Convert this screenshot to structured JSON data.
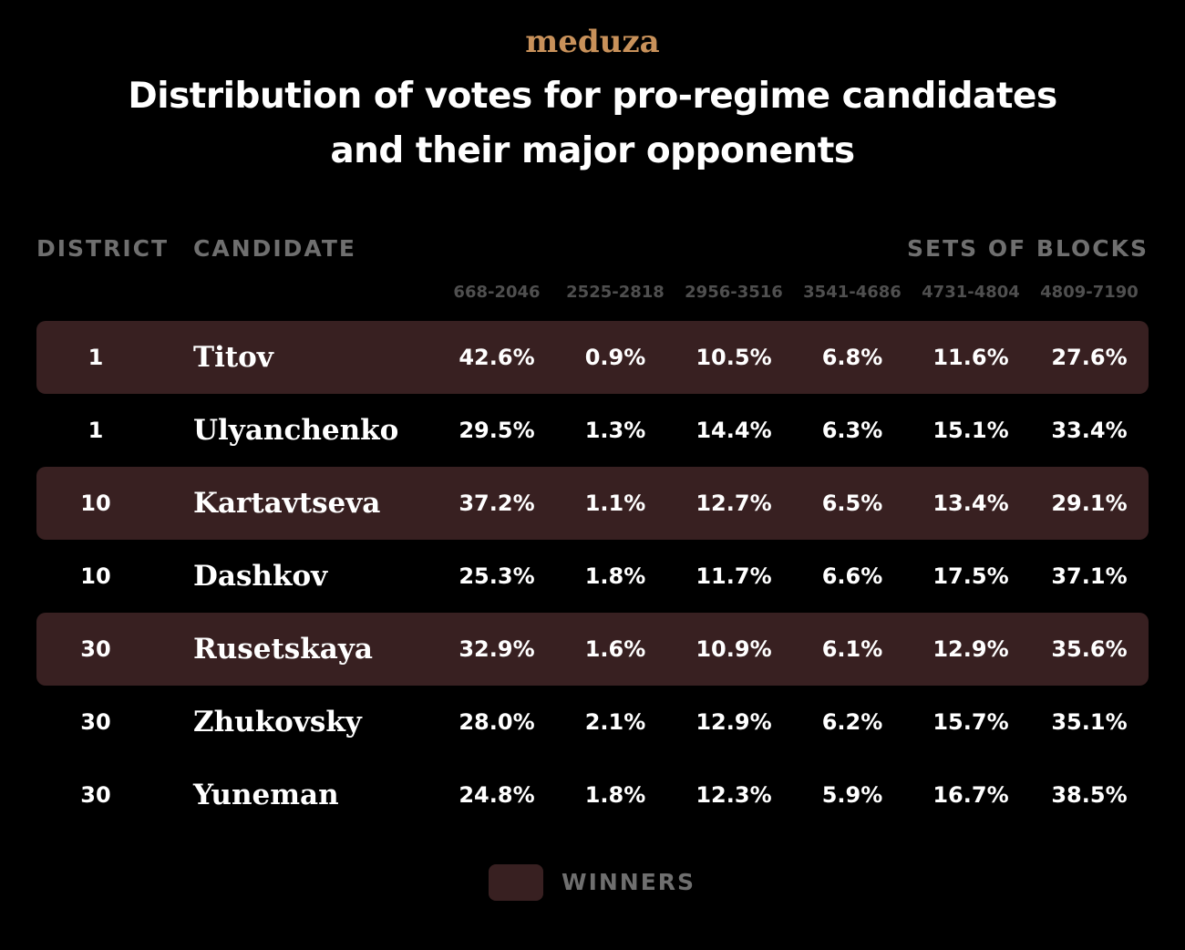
{
  "brand": {
    "logo_text": "meduza"
  },
  "chart_data": {
    "type": "table",
    "title_lines": [
      "Distribution of votes for pro-regime candidates",
      "and their major opponents"
    ],
    "headers": {
      "district": "DISTRICT",
      "candidate": "CANDIDATE",
      "group": "SETS OF BLOCKS"
    },
    "block_sets": [
      "668-2046",
      "2525-2818",
      "2956-3516",
      "3541-4686",
      "4731-4804",
      "4809-7190"
    ],
    "rows": [
      {
        "district": "1",
        "candidate": "Titov",
        "winner": true,
        "values": [
          "42.6%",
          "0.9%",
          "10.5%",
          "6.8%",
          "11.6%",
          "27.6%"
        ]
      },
      {
        "district": "1",
        "candidate": "Ulyanchenko",
        "winner": false,
        "values": [
          "29.5%",
          "1.3%",
          "14.4%",
          "6.3%",
          "15.1%",
          "33.4%"
        ]
      },
      {
        "district": "10",
        "candidate": "Kartavtseva",
        "winner": true,
        "values": [
          "37.2%",
          "1.1%",
          "12.7%",
          "6.5%",
          "13.4%",
          "29.1%"
        ]
      },
      {
        "district": "10",
        "candidate": "Dashkov",
        "winner": false,
        "values": [
          "25.3%",
          "1.8%",
          "11.7%",
          "6.6%",
          "17.5%",
          "37.1%"
        ]
      },
      {
        "district": "30",
        "candidate": "Rusetskaya",
        "winner": true,
        "values": [
          "32.9%",
          "1.6%",
          "10.9%",
          "6.1%",
          "12.9%",
          "35.6%"
        ]
      },
      {
        "district": "30",
        "candidate": "Zhukovsky",
        "winner": false,
        "values": [
          "28.0%",
          "2.1%",
          "12.9%",
          "6.2%",
          "15.7%",
          "35.1%"
        ]
      },
      {
        "district": "30",
        "candidate": "Yuneman",
        "winner": false,
        "values": [
          "24.8%",
          "1.8%",
          "12.3%",
          "5.9%",
          "16.7%",
          "38.5%"
        ]
      }
    ],
    "legend": {
      "label": "WINNERS"
    }
  },
  "colors": {
    "background": "#000000",
    "logo": "#c8915a",
    "title": "#ffffff",
    "header": "#6f6f6f",
    "subheader": "#4f4f4f",
    "text": "#ffffff",
    "winner_row": "#382021"
  }
}
